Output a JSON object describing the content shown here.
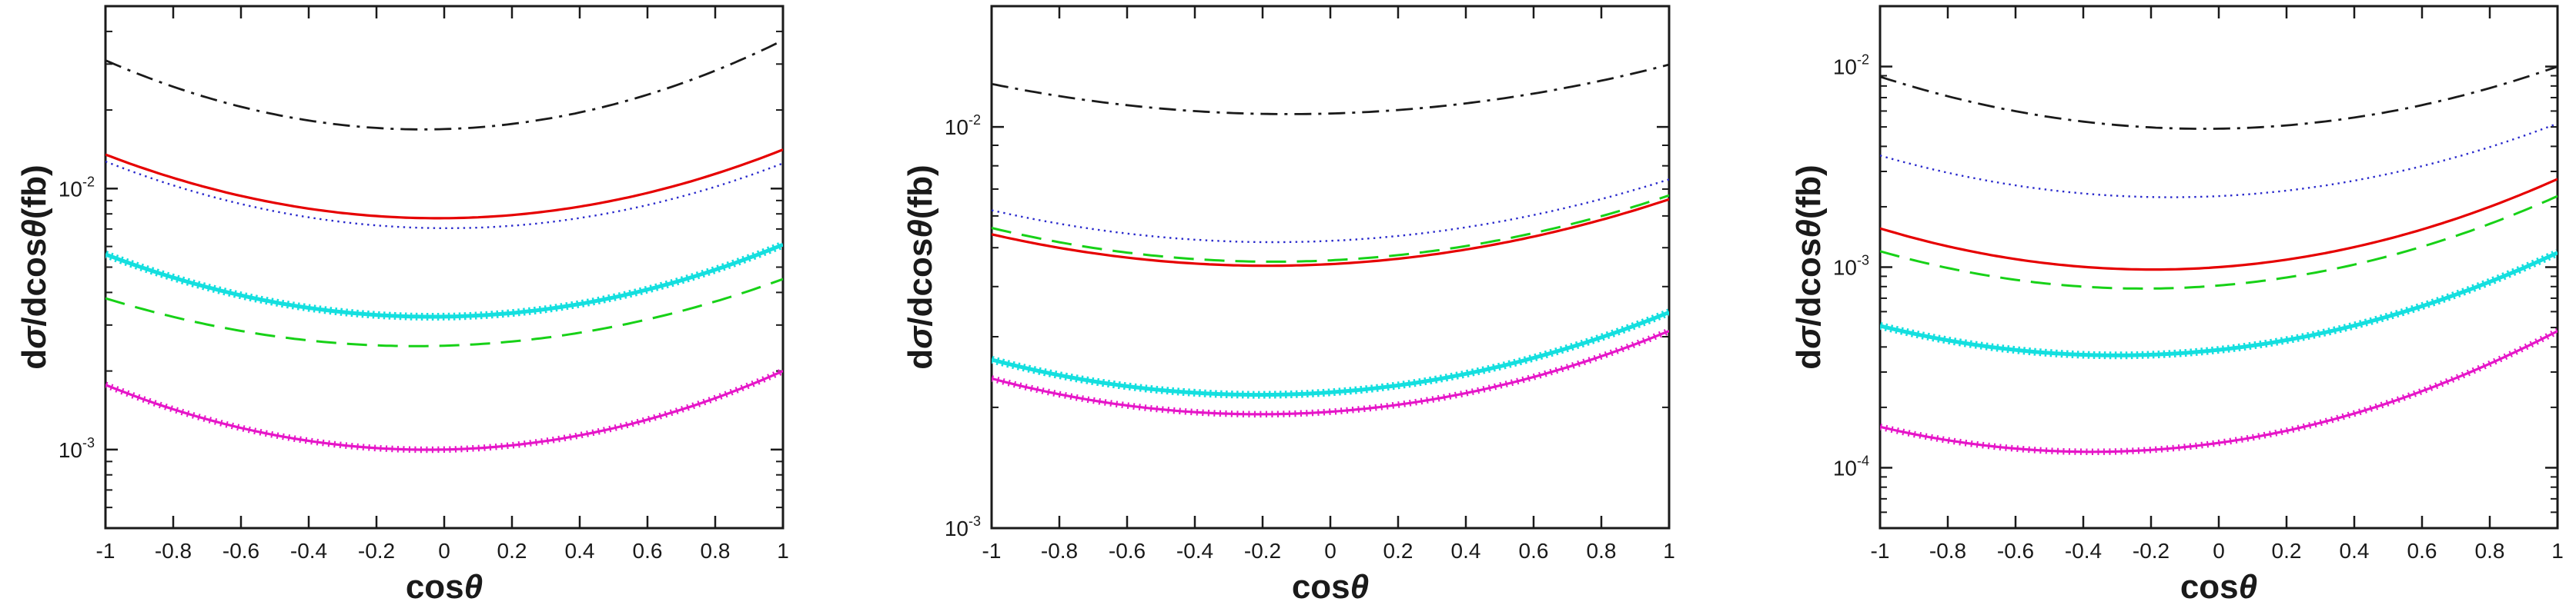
{
  "figure": {
    "background": "#ffffff",
    "axis_color": "#1a1a1a",
    "xlabel_segments": [
      {
        "t": "cos",
        "i": false
      },
      {
        "t": "θ",
        "i": true
      }
    ],
    "ylabel_segments": [
      {
        "t": "d",
        "i": false
      },
      {
        "t": "σ",
        "i": true
      },
      {
        "t": "/dcos",
        "i": false
      },
      {
        "t": "θ",
        "i": true
      },
      {
        "t": "(fb)",
        "i": false
      }
    ],
    "xtick_labels": [
      "-1",
      "-0.8",
      "-0.6",
      "-0.4",
      "-0.2",
      "0",
      "0.2",
      "0.4",
      "0.6",
      "0.8",
      "1"
    ]
  },
  "chart_data": [
    {
      "type": "line",
      "panel": "left",
      "title": "",
      "xlabel": "cosθ",
      "ylabel": "dσ/dcosθ(fb)",
      "xlim": [
        -1,
        1
      ],
      "ylim": [
        0.0005,
        0.05
      ],
      "xticks": [
        -1,
        -0.8,
        -0.6,
        -0.4,
        -0.2,
        0,
        0.2,
        0.4,
        0.6,
        0.8,
        1
      ],
      "ytick_exponents": [
        -2,
        -3
      ],
      "grid": false,
      "legend_position": "none",
      "x": [
        -1,
        0,
        1
      ],
      "series": [
        {
          "name": "black-dashdot",
          "color": "#1a1a1a",
          "style": "dashdot",
          "y": [
            0.031,
            0.0169,
            0.037
          ]
        },
        {
          "name": "red-solid",
          "color": "#e60000",
          "style": "solid",
          "y": [
            0.0135,
            0.0077,
            0.0141
          ]
        },
        {
          "name": "blue-dotted",
          "color": "#2929cc",
          "style": "dotted",
          "y": [
            0.0127,
            0.00705,
            0.0125
          ]
        },
        {
          "name": "cyan-thick-marker",
          "color": "#15dfdf",
          "style": "thickmarker",
          "y": [
            0.0056,
            0.00323,
            0.0061
          ]
        },
        {
          "name": "green-dashed",
          "color": "#17d117",
          "style": "dashed",
          "y": [
            0.0038,
            0.0025,
            0.0045
          ]
        },
        {
          "name": "magenta-plus-marker",
          "color": "#e616c8",
          "style": "plusmarker",
          "y": [
            0.00177,
            0.001,
            0.002
          ]
        }
      ]
    },
    {
      "type": "line",
      "panel": "middle",
      "title": "",
      "xlabel": "cosθ",
      "ylabel": "dσ/dcosθ(fb)",
      "xlim": [
        -1,
        1
      ],
      "ylim": [
        0.001,
        0.02
      ],
      "xticks": [
        -1,
        -0.8,
        -0.6,
        -0.4,
        -0.2,
        0,
        0.2,
        0.4,
        0.6,
        0.8,
        1
      ],
      "ytick_exponents": [
        -2,
        -3
      ],
      "grid": false,
      "legend_position": "none",
      "x": [
        -1,
        0,
        1
      ],
      "series": [
        {
          "name": "black-dashdot",
          "color": "#1a1a1a",
          "style": "dashdot",
          "y": [
            0.0128,
            0.0108,
            0.0143
          ]
        },
        {
          "name": "blue-dotted",
          "color": "#2929cc",
          "style": "dotted",
          "y": [
            0.0062,
            0.0052,
            0.0074
          ]
        },
        {
          "name": "red-solid",
          "color": "#e60000",
          "style": "solid",
          "y": [
            0.0054,
            0.00455,
            0.0066
          ]
        },
        {
          "name": "green-dashed",
          "color": "#17d117",
          "style": "dashed",
          "y": [
            0.0056,
            0.00465,
            0.00675
          ]
        },
        {
          "name": "cyan-thick-marker",
          "color": "#15dfdf",
          "style": "thickmarker",
          "y": [
            0.00263,
            0.00218,
            0.00345
          ]
        },
        {
          "name": "magenta-plus-marker",
          "color": "#e616c8",
          "style": "plusmarker",
          "y": [
            0.00236,
            0.00195,
            0.0031
          ]
        }
      ]
    },
    {
      "type": "line",
      "panel": "right",
      "title": "",
      "xlabel": "cosθ",
      "ylabel": "dσ/dcosθ(fb)",
      "xlim": [
        -1,
        1
      ],
      "ylim": [
        5e-05,
        0.02
      ],
      "xticks": [
        -1,
        -0.8,
        -0.6,
        -0.4,
        -0.2,
        0,
        0.2,
        0.4,
        0.6,
        0.8,
        1
      ],
      "ytick_exponents": [
        -2,
        -3,
        -4
      ],
      "grid": false,
      "legend_position": "none",
      "x": [
        -1,
        0,
        1
      ],
      "series": [
        {
          "name": "black-dashdot",
          "color": "#1a1a1a",
          "style": "dashdot",
          "y": [
            0.0089,
            0.0049,
            0.01
          ]
        },
        {
          "name": "blue-dotted",
          "color": "#2929cc",
          "style": "dotted",
          "y": [
            0.0036,
            0.00226,
            0.0052
          ]
        },
        {
          "name": "red-solid",
          "color": "#e60000",
          "style": "solid",
          "y": [
            0.00156,
            0.001,
            0.00275
          ]
        },
        {
          "name": "green-dashed",
          "color": "#17d117",
          "style": "dashed",
          "y": [
            0.0012,
            0.00081,
            0.00226
          ]
        },
        {
          "name": "cyan-thick-marker",
          "color": "#15dfdf",
          "style": "thickmarker",
          "y": [
            0.00051,
            0.000387,
            0.00118
          ]
        },
        {
          "name": "magenta-plus-marker",
          "color": "#e616c8",
          "style": "plusmarker",
          "y": [
            0.00016,
            0.000133,
            0.00048
          ]
        }
      ]
    }
  ]
}
